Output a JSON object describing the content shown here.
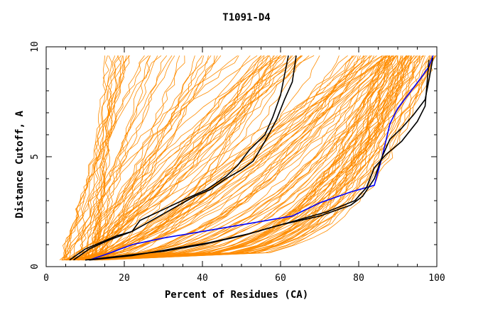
{
  "chart_data": {
    "type": "line",
    "title": "T1091-D4",
    "xlabel": "Percent of Residues (CA)",
    "ylabel": "Distance Cutoff, A",
    "xlim": [
      0,
      100
    ],
    "ylim": [
      0,
      10
    ],
    "x_ticks": [
      0,
      20,
      40,
      60,
      80,
      100
    ],
    "y_ticks": [
      0,
      5,
      10
    ],
    "grid": false,
    "legend": "none",
    "colors": {
      "background_models": "#ff8c00",
      "highlight_blue": "#0000ff",
      "highlight_black": "#000000"
    },
    "series": [
      {
        "color": "#0000ff",
        "x": [
          11,
          16,
          22,
          30,
          40,
          50,
          63,
          70,
          78,
          84,
          86,
          88,
          90,
          93,
          96,
          98,
          99
        ],
        "y": [
          0.3,
          0.6,
          1.0,
          1.3,
          1.6,
          1.9,
          2.3,
          2.9,
          3.4,
          3.7,
          5.0,
          6.5,
          7.2,
          7.9,
          8.6,
          9.1,
          9.6
        ]
      },
      {
        "color": "#000000",
        "x": [
          10,
          20,
          30,
          40,
          50,
          60,
          70,
          78,
          81,
          84,
          86,
          88,
          91,
          94,
          97,
          98,
          99
        ],
        "y": [
          0.3,
          0.5,
          0.7,
          1.0,
          1.4,
          1.9,
          2.3,
          2.8,
          3.2,
          4.0,
          5.0,
          5.8,
          6.3,
          6.9,
          7.6,
          8.5,
          9.5
        ]
      },
      {
        "color": "#000000",
        "x": [
          11,
          22,
          32,
          42,
          52,
          62,
          72,
          79,
          82,
          84,
          87,
          91,
          95,
          97,
          98
        ],
        "y": [
          0.3,
          0.5,
          0.8,
          1.1,
          1.5,
          2.0,
          2.5,
          3.0,
          3.6,
          4.5,
          5.1,
          5.7,
          6.6,
          7.3,
          9.4
        ]
      },
      {
        "color": "#000000",
        "x": [
          6,
          10,
          14,
          18,
          22,
          24,
          30,
          36,
          41,
          46,
          49,
          52,
          56,
          58,
          60,
          62
        ],
        "y": [
          0.3,
          0.8,
          1.1,
          1.4,
          1.6,
          2.1,
          2.6,
          3.1,
          3.5,
          4.1,
          4.6,
          5.3,
          6.0,
          6.8,
          7.8,
          9.6
        ]
      },
      {
        "color": "#000000",
        "x": [
          7,
          11,
          16,
          22,
          28,
          34,
          38,
          42,
          46,
          50,
          53,
          56,
          59,
          61,
          63,
          64
        ],
        "y": [
          0.3,
          0.8,
          1.2,
          1.6,
          2.2,
          2.8,
          3.2,
          3.5,
          4.0,
          4.4,
          4.8,
          5.7,
          6.7,
          7.6,
          8.4,
          9.6
        ]
      }
    ]
  }
}
